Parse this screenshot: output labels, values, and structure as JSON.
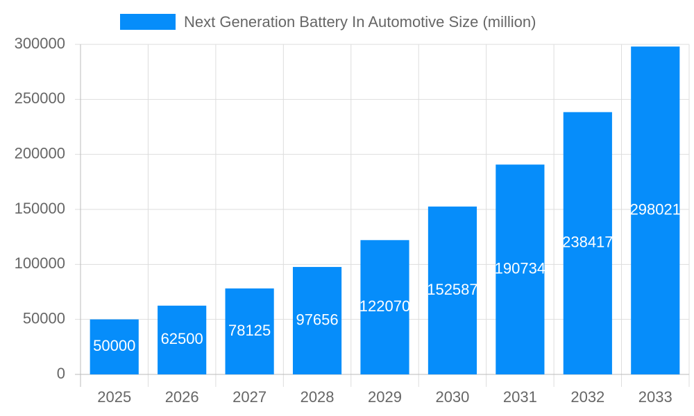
{
  "chart_data": {
    "type": "bar",
    "categories": [
      "2025",
      "2026",
      "2027",
      "2028",
      "2029",
      "2030",
      "2031",
      "2032",
      "2033"
    ],
    "series": [
      {
        "name": "Next Generation Battery In Automotive Size (million)",
        "color": "#068dfa",
        "values": [
          50000,
          62500,
          78125,
          97656,
          122070,
          152587,
          190734,
          238417,
          298021
        ]
      }
    ],
    "ylim": [
      0,
      300000
    ],
    "yticks": [
      0,
      50000,
      100000,
      150000,
      200000,
      250000,
      300000
    ],
    "grid": true,
    "legend": "top",
    "data_labels": true
  }
}
